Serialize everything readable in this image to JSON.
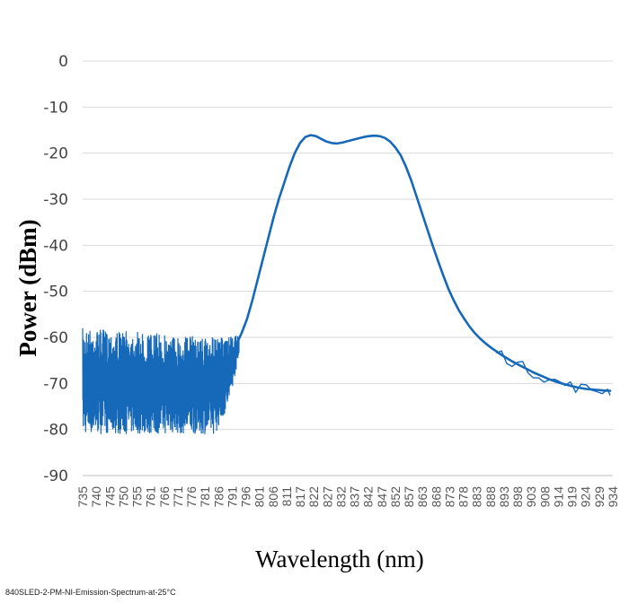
{
  "caption": "840SLED-2-PM-NI-Emission-Spectrum-at-25°C",
  "chart_data": {
    "type": "line",
    "title": "",
    "xlabel": "Wavelength (nm)",
    "ylabel": "Power (dBm)",
    "ylim": [
      -90,
      0
    ],
    "yticks": [
      0,
      -10,
      -20,
      -30,
      -40,
      -50,
      -60,
      -70,
      -80,
      -90
    ],
    "xlim": [
      735,
      935
    ],
    "xticks": [
      735,
      740,
      745,
      750,
      755,
      761,
      766,
      771,
      776,
      781,
      786,
      791,
      796,
      801,
      806,
      811,
      817,
      822,
      827,
      832,
      837,
      842,
      847,
      852,
      857,
      863,
      868,
      873,
      878,
      883,
      888,
      893,
      898,
      903,
      908,
      914,
      919,
      924,
      929,
      934
    ],
    "grid": "horizontal",
    "legend": "none",
    "series": [
      {
        "color": "#1668b8",
        "noise_band": [
          {
            "x": 735,
            "low": -81,
            "high": -58
          },
          {
            "x": 760,
            "low": -81,
            "high": -59
          },
          {
            "x": 785,
            "low": -81,
            "high": -60
          },
          {
            "x": 790,
            "low": -75,
            "high": -60
          },
          {
            "x": 794,
            "low": -64,
            "high": -59.5
          }
        ],
        "x": [
          793,
          795,
          797,
          799,
          801,
          803,
          805,
          807,
          809,
          811,
          813,
          815,
          817,
          819,
          821,
          823,
          825,
          827,
          829,
          831,
          833,
          835,
          837,
          839,
          841,
          843,
          845,
          847,
          849,
          851,
          853,
          855,
          857,
          859,
          861,
          863,
          865,
          867,
          869,
          871,
          873,
          875,
          877,
          879,
          881,
          883,
          885,
          887,
          889,
          891,
          893,
          895,
          897,
          899,
          901,
          903,
          905,
          907,
          909,
          911,
          913,
          915,
          917,
          919,
          921,
          923,
          925,
          927,
          929,
          931,
          933,
          934
        ],
        "y": [
          -61.5,
          -59,
          -56,
          -52,
          -47.5,
          -43,
          -38.5,
          -34,
          -30,
          -26.5,
          -23,
          -20,
          -17.8,
          -16.5,
          -16.1,
          -16.3,
          -16.9,
          -17.5,
          -17.8,
          -17.9,
          -17.7,
          -17.4,
          -17.1,
          -16.8,
          -16.5,
          -16.3,
          -16.2,
          -16.3,
          -16.7,
          -17.5,
          -18.8,
          -20.5,
          -23,
          -26,
          -29.5,
          -33,
          -36.5,
          -40,
          -43.3,
          -46.5,
          -49.5,
          -52,
          -54.2,
          -56,
          -57.7,
          -59.1,
          -60.3,
          -61.3,
          -62.2,
          -63,
          -63.8,
          -64.5,
          -65.2,
          -65.8,
          -66.4,
          -67,
          -67.6,
          -68.1,
          -68.6,
          -69.1,
          -69.5,
          -69.9,
          -70.2,
          -70.5,
          -70.8,
          -71,
          -71.2,
          -71.3,
          -71.4,
          -71.5,
          -71.6,
          -71.6
        ]
      }
    ]
  }
}
